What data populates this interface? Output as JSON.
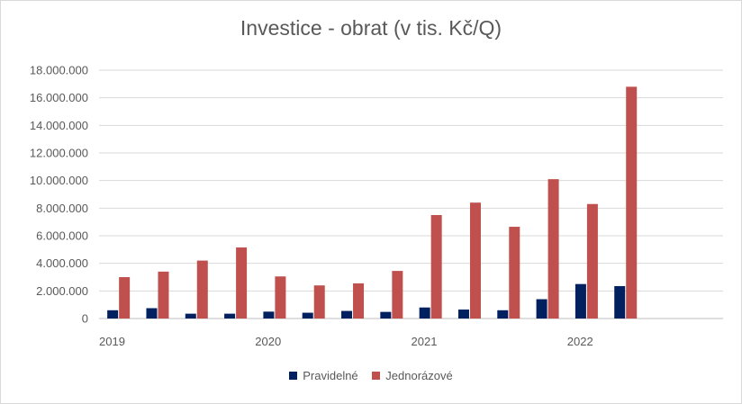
{
  "chart_data": {
    "type": "bar",
    "title": "Investice - obrat (v tis. Kč/Q)",
    "xlabel": "",
    "ylabel": "",
    "ylim": [
      0,
      18000000
    ],
    "yticks": [
      "0",
      "2.000.000",
      "4.000.000",
      "6.000.000",
      "8.000.000",
      "10.000.000",
      "12.000.000",
      "14.000.000",
      "16.000.000",
      "18.000.000"
    ],
    "groups": [
      "2019",
      "2020",
      "2021",
      "2022"
    ],
    "quarters_per_group": 4,
    "quarters_in_group": [
      4,
      4,
      4,
      2
    ],
    "legend_position": "bottom",
    "grid": true,
    "series": [
      {
        "name": "Pravidelné",
        "color": "#002060",
        "values": [
          600000,
          750000,
          350000,
          350000,
          500000,
          420000,
          550000,
          480000,
          800000,
          650000,
          600000,
          1400000,
          2500000,
          2350000
        ]
      },
      {
        "name": "Jednorázové",
        "color": "#C0504D",
        "values": [
          3000000,
          3400000,
          4200000,
          5150000,
          3050000,
          2400000,
          2550000,
          3450000,
          7500000,
          8400000,
          6650000,
          10100000,
          8300000,
          16800000
        ]
      }
    ]
  }
}
